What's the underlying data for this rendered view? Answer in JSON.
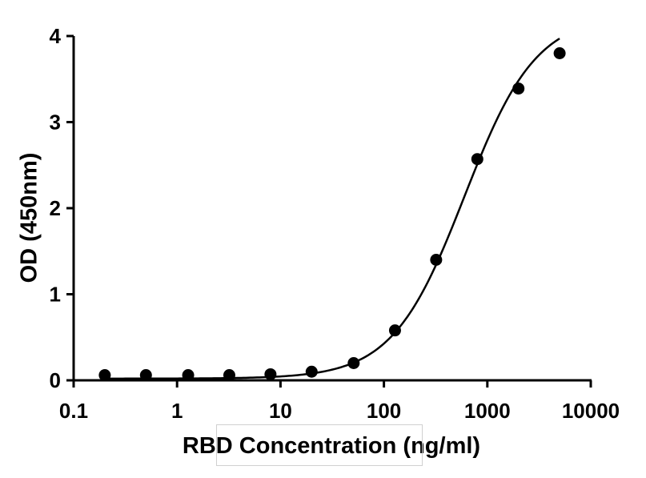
{
  "chart_data": {
    "type": "scatter",
    "title": "",
    "xlabel": "RBD Concentration (ng/ml)",
    "ylabel": "OD (450nm)",
    "x_scale": "log",
    "xlim": [
      0.1,
      10000
    ],
    "ylim": [
      0,
      4
    ],
    "x_ticks": [
      "0.1",
      "1",
      "10",
      "100",
      "1000",
      "10000"
    ],
    "y_ticks": [
      "0",
      "1",
      "2",
      "3",
      "4"
    ],
    "grid": false,
    "series": [
      {
        "points": [
          {
            "x": 0.2,
            "y": 0.06
          },
          {
            "x": 0.5,
            "y": 0.06
          },
          {
            "x": 1.28,
            "y": 0.06
          },
          {
            "x": 3.2,
            "y": 0.06
          },
          {
            "x": 8,
            "y": 0.07
          },
          {
            "x": 20,
            "y": 0.1
          },
          {
            "x": 51,
            "y": 0.2
          },
          {
            "x": 128,
            "y": 0.58
          },
          {
            "x": 320,
            "y": 1.4
          },
          {
            "x": 800,
            "y": 2.57
          },
          {
            "x": 2000,
            "y": 3.39
          },
          {
            "x": 5000,
            "y": 3.8
          }
        ]
      }
    ],
    "fit": {
      "type": "4PL",
      "bottom": 0.02,
      "top": 4.25,
      "ec50": 600,
      "hill": 1.25,
      "x_range": [
        0.2,
        5000
      ]
    }
  }
}
